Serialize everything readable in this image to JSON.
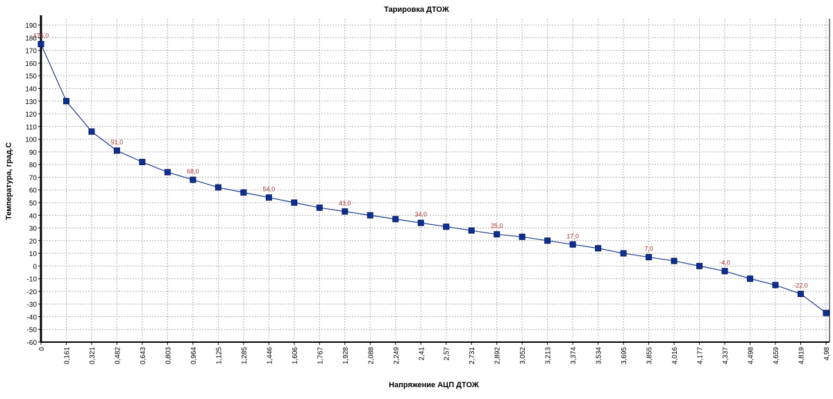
{
  "chart_data": {
    "type": "line",
    "title": "Тарировка ДТОЖ",
    "xlabel": "Напряжение АЦП ДТОЖ",
    "ylabel": "Температура, град.С",
    "ylim": [
      -60,
      195
    ],
    "yticks": [
      190,
      180,
      170,
      160,
      150,
      140,
      130,
      120,
      110,
      100,
      90,
      80,
      70,
      60,
      50,
      40,
      30,
      20,
      10,
      0,
      -10,
      -20,
      -30,
      -40,
      -50,
      -60
    ],
    "x_tick_labels": [
      "0",
      "0,161",
      "0,321",
      "0,482",
      "0,643",
      "0,803",
      "0,964",
      "1,125",
      "1,285",
      "1,446",
      "1,606",
      "1,767",
      "1,928",
      "2,088",
      "2,249",
      "2,41",
      "2,57",
      "2,731",
      "2,892",
      "3,052",
      "3,213",
      "3,374",
      "3,534",
      "3,695",
      "3,855",
      "4,016",
      "4,177",
      "4,337",
      "4,498",
      "4,659",
      "4,819",
      "4,98"
    ],
    "grid": true,
    "series": [
      {
        "name": "Тарировка",
        "color": "#1a3a8f",
        "x": [
          0,
          0.161,
          0.321,
          0.482,
          0.643,
          0.803,
          0.964,
          1.125,
          1.285,
          1.446,
          1.606,
          1.767,
          1.928,
          2.088,
          2.249,
          2.41,
          2.57,
          2.731,
          2.892,
          3.052,
          3.213,
          3.374,
          3.534,
          3.695,
          3.855,
          4.016,
          4.177,
          4.337,
          4.498,
          4.659,
          4.819,
          4.98
        ],
        "values": [
          175,
          130,
          106,
          91,
          82,
          74,
          68,
          62,
          58,
          54,
          50,
          46,
          43,
          40,
          37,
          34,
          31,
          28,
          25,
          23,
          20,
          17,
          14,
          10,
          7,
          4,
          0,
          -4,
          -10,
          -15,
          -22,
          -37
        ]
      }
    ],
    "data_labels": [
      {
        "index": 0,
        "text": "175,0"
      },
      {
        "index": 3,
        "text": "91,0"
      },
      {
        "index": 6,
        "text": "68,0"
      },
      {
        "index": 9,
        "text": "54,0"
      },
      {
        "index": 12,
        "text": "43,0"
      },
      {
        "index": 15,
        "text": "34,0"
      },
      {
        "index": 18,
        "text": "25,0"
      },
      {
        "index": 21,
        "text": "17,0"
      },
      {
        "index": 24,
        "text": "7,0"
      },
      {
        "index": 27,
        "text": "-4,0"
      },
      {
        "index": 30,
        "text": "-22,0"
      }
    ]
  }
}
